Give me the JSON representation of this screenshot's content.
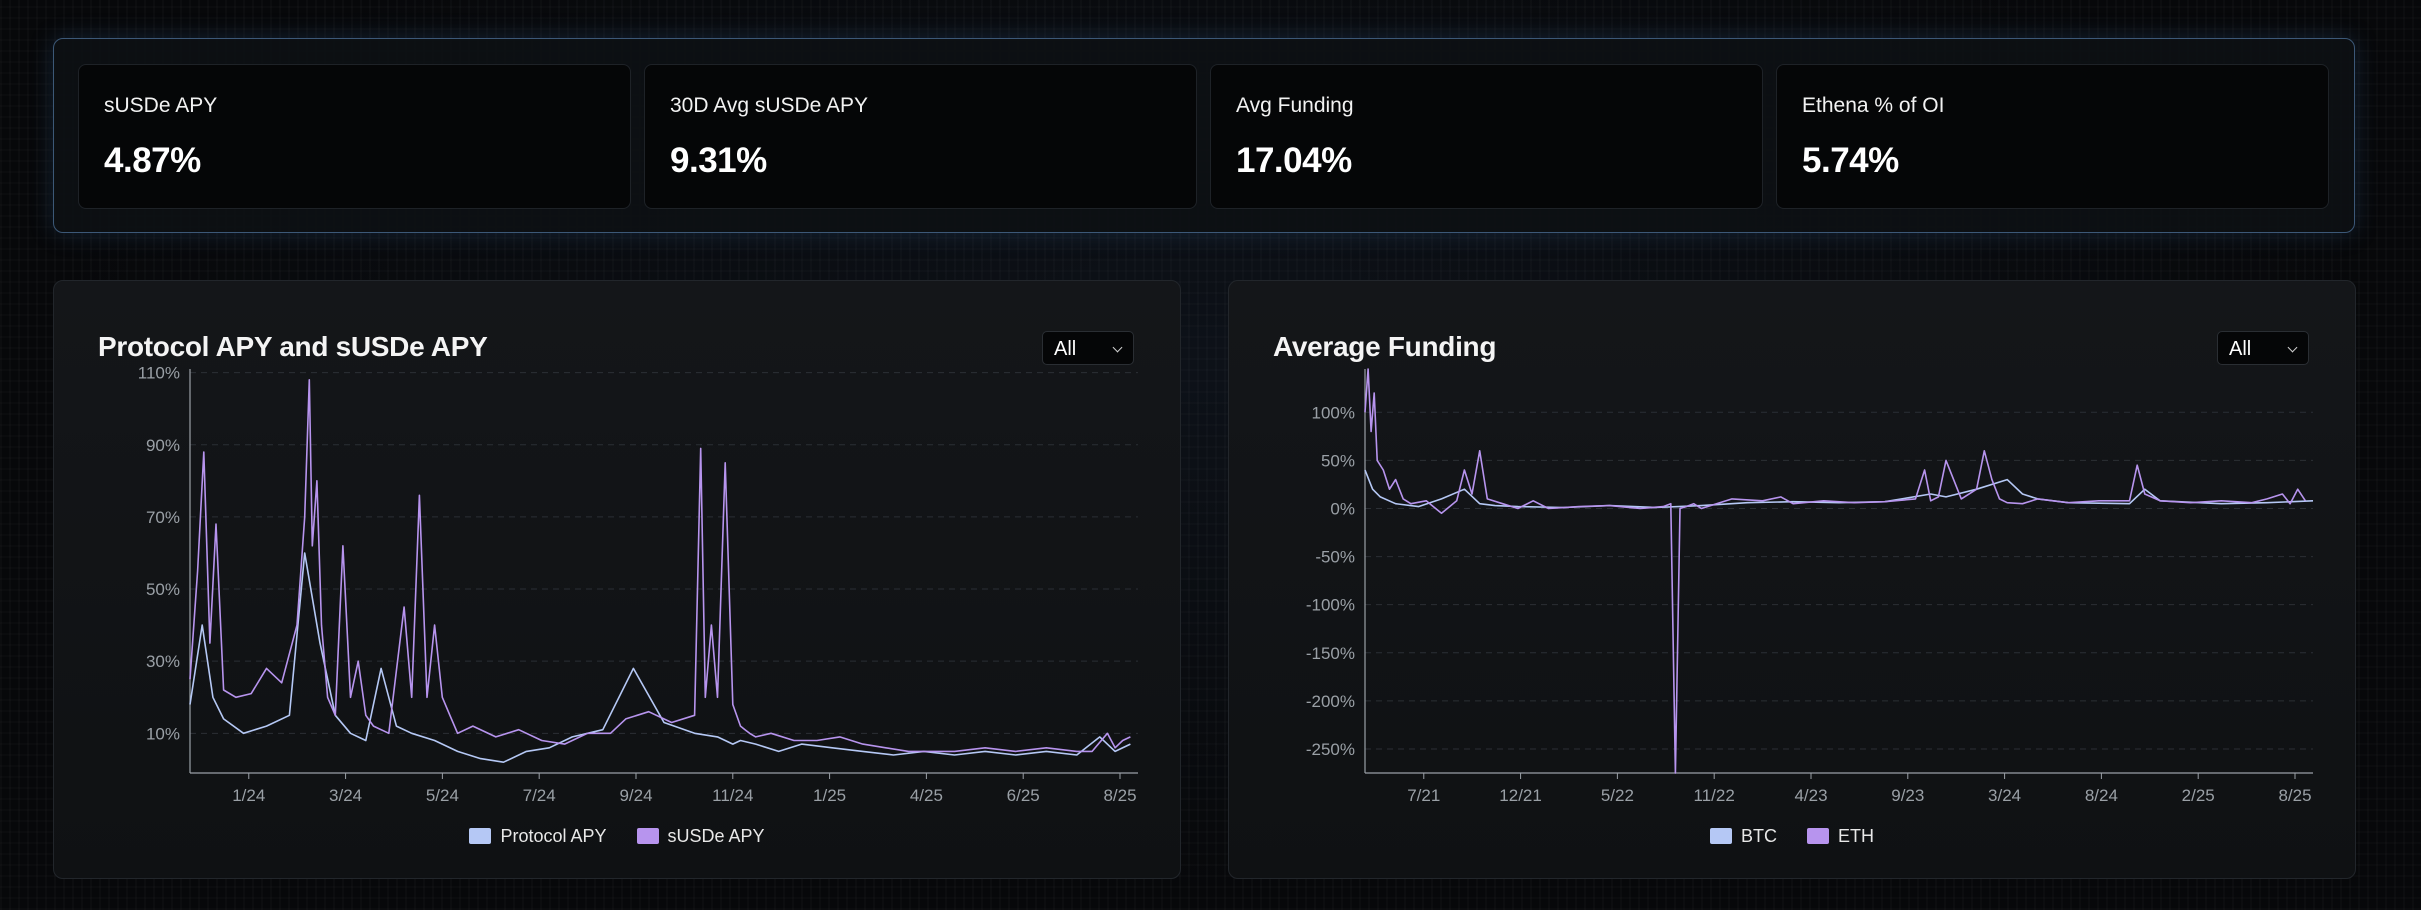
{
  "stats": [
    {
      "label": "sUSDe APY",
      "value": "4.87%"
    },
    {
      "label": "30D Avg sUSDe APY",
      "value": "9.31%"
    },
    {
      "label": "Avg Funding",
      "value": "17.04%"
    },
    {
      "label": "Ethena % of OI",
      "value": "5.74%"
    }
  ],
  "colors": {
    "protocol": "#b5c8f5",
    "susde": "#b794ee",
    "btc": "#b5c8f5",
    "eth": "#b794ee",
    "axis": "#9aa0a6",
    "grid": "#2b2f35"
  },
  "left_panel": {
    "title": "Protocol APY and sUSDe APY",
    "select_value": "All",
    "legend": [
      "Protocol APY",
      "sUSDe APY"
    ]
  },
  "right_panel": {
    "title": "Average Funding",
    "select_value": "All",
    "legend": [
      "BTC",
      "ETH"
    ]
  },
  "chart_data": [
    {
      "type": "line",
      "title": "Protocol APY and sUSDe APY",
      "x_ticks": [
        "1/24",
        "3/24",
        "5/24",
        "7/24",
        "9/24",
        "11/24",
        "1/25",
        "4/25",
        "6/25",
        "8/25"
      ],
      "y_ticks": [
        "110%",
        "90%",
        "70%",
        "50%",
        "30%",
        "10%"
      ],
      "ylim": [
        -1,
        111
      ],
      "xlim": [
        0,
        620
      ],
      "grid": true,
      "legend_position": "bottom",
      "series": [
        {
          "name": "Protocol APY",
          "x": [
            0,
            8,
            15,
            22,
            35,
            50,
            65,
            75,
            85,
            95,
            105,
            115,
            125,
            135,
            145,
            160,
            175,
            190,
            205,
            220,
            235,
            250,
            270,
            290,
            310,
            330,
            345,
            350,
            355,
            360,
            370,
            385,
            400,
            420,
            440,
            460,
            480,
            500,
            520,
            540,
            560,
            580,
            595,
            605,
            615
          ],
          "y": [
            18,
            40,
            20,
            14,
            10,
            12,
            15,
            60,
            35,
            15,
            10,
            8,
            28,
            12,
            10,
            8,
            5,
            3,
            2,
            5,
            6,
            9,
            11,
            28,
            13,
            10,
            9,
            8,
            7,
            8,
            7,
            5,
            7,
            6,
            5,
            4,
            5,
            4,
            5,
            4,
            5,
            4,
            9,
            5,
            7
          ]
        },
        {
          "name": "sUSDe APY",
          "x": [
            0,
            5,
            9,
            13,
            17,
            22,
            30,
            40,
            50,
            60,
            70,
            75,
            78,
            80,
            83,
            86,
            90,
            95,
            100,
            105,
            110,
            115,
            120,
            130,
            140,
            145,
            150,
            155,
            160,
            165,
            170,
            175,
            185,
            200,
            215,
            230,
            245,
            260,
            275,
            285,
            300,
            315,
            330,
            334,
            337,
            341,
            345,
            350,
            355,
            360,
            363,
            366,
            370,
            380,
            395,
            410,
            425,
            440,
            455,
            470,
            485,
            500,
            520,
            540,
            560,
            580,
            590,
            600,
            605,
            610,
            615
          ],
          "y": [
            25,
            55,
            88,
            35,
            68,
            22,
            20,
            21,
            28,
            24,
            40,
            70,
            108,
            62,
            80,
            40,
            20,
            15,
            62,
            20,
            30,
            15,
            12,
            10,
            45,
            20,
            76,
            20,
            40,
            20,
            15,
            10,
            12,
            9,
            11,
            8,
            7,
            10,
            10,
            14,
            16,
            13,
            15,
            89,
            20,
            40,
            20,
            85,
            18,
            12,
            11,
            10,
            9,
            10,
            8,
            8,
            9,
            7,
            6,
            5,
            5,
            5,
            6,
            5,
            6,
            5,
            5,
            10,
            6,
            8,
            9
          ]
        }
      ]
    },
    {
      "type": "line",
      "title": "Average Funding",
      "x_ticks": [
        "7/21",
        "12/21",
        "5/22",
        "11/22",
        "4/23",
        "9/23",
        "3/24",
        "8/24",
        "2/25",
        "8/25"
      ],
      "y_ticks": [
        "100%",
        "50%",
        "0%",
        "-50%",
        "-100%",
        "-150%",
        "-200%",
        "-250%"
      ],
      "ylim": [
        -275,
        145
      ],
      "xlim": [
        0,
        620
      ],
      "grid": true,
      "legend_position": "bottom",
      "series": [
        {
          "name": "BTC",
          "x": [
            0,
            5,
            10,
            20,
            35,
            50,
            65,
            75,
            85,
            100,
            130,
            160,
            190,
            205,
            220,
            250,
            280,
            310,
            340,
            370,
            380,
            400,
            420,
            430,
            440,
            460,
            500,
            510,
            520,
            560,
            590,
            620
          ],
          "y": [
            40,
            20,
            12,
            5,
            2,
            10,
            20,
            5,
            3,
            2,
            1,
            3,
            1,
            2,
            3,
            6,
            7,
            6,
            7,
            15,
            12,
            20,
            30,
            15,
            10,
            6,
            5,
            20,
            8,
            5,
            6,
            8
          ]
        },
        {
          "name": "ETH",
          "x": [
            0,
            2,
            4,
            6,
            8,
            12,
            16,
            20,
            25,
            30,
            40,
            50,
            60,
            65,
            70,
            75,
            80,
            90,
            100,
            110,
            120,
            140,
            160,
            180,
            195,
            200,
            203,
            206,
            210,
            215,
            220,
            240,
            260,
            272,
            280,
            300,
            320,
            340,
            360,
            366,
            370,
            375,
            380,
            390,
            400,
            405,
            410,
            415,
            420,
            430,
            440,
            460,
            480,
            500,
            505,
            510,
            520,
            540,
            560,
            580,
            590,
            600,
            605,
            610,
            615
          ],
          "y": [
            100,
            145,
            80,
            120,
            50,
            40,
            20,
            30,
            10,
            5,
            8,
            -5,
            8,
            40,
            15,
            60,
            10,
            5,
            0,
            8,
            0,
            2,
            3,
            0,
            2,
            5,
            -275,
            0,
            2,
            5,
            0,
            10,
            8,
            12,
            5,
            8,
            6,
            7,
            10,
            40,
            8,
            12,
            50,
            10,
            20,
            60,
            30,
            10,
            6,
            5,
            10,
            6,
            8,
            8,
            45,
            15,
            8,
            6,
            8,
            6,
            10,
            15,
            5,
            20,
            8
          ]
        }
      ]
    }
  ]
}
